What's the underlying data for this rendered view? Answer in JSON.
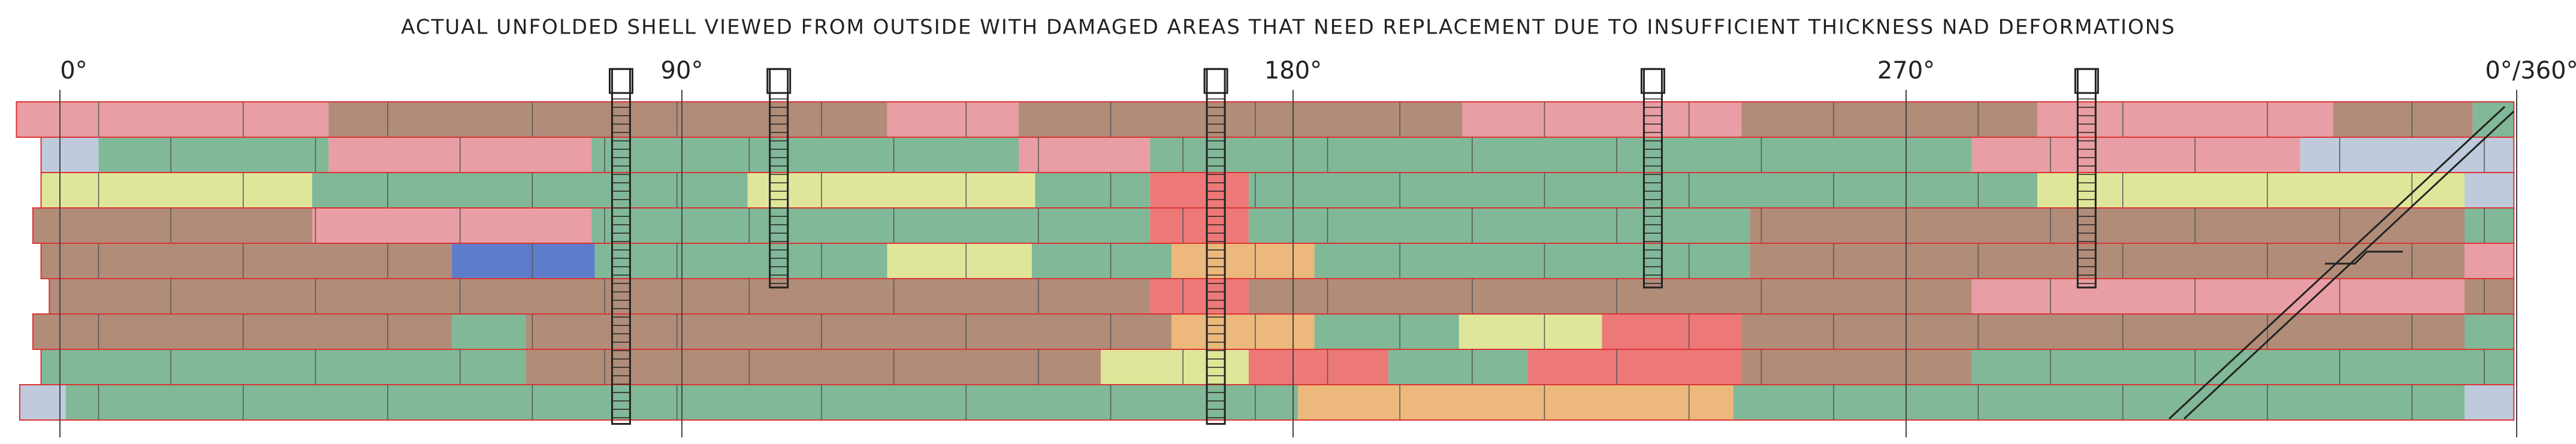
{
  "title": "ACTUAL UNFOLDED SHELL VIEWED FROM OUTSIDE WITH DAMAGED AREAS THAT NEED REPLACEMENT DUE TO INSUFFICIENT THICKNESS NAD DEFORMATIONS",
  "angle_labels": [
    "0°",
    "90°",
    "180°",
    "270°",
    "0°/360°"
  ]
}
